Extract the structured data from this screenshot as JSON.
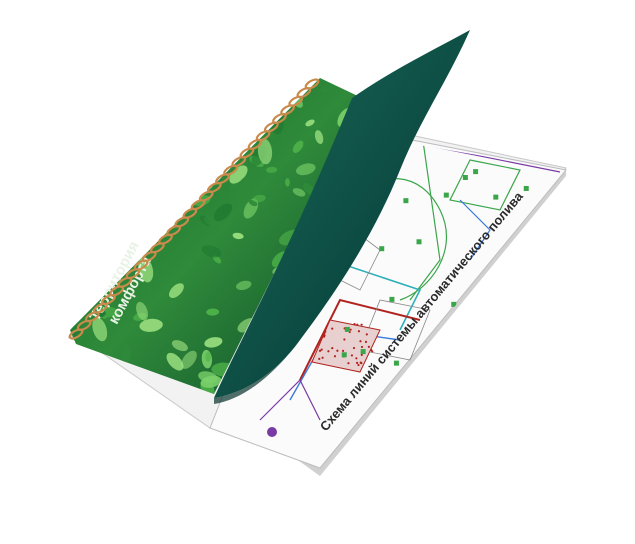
{
  "image": {
    "subject": "Spiral-bound booklet with green leaf cover peeled back over a landscape irrigation plan"
  },
  "plan_sheet": {
    "title": "Схема линий системы автоматического полива"
  },
  "cover": {
    "title_line1": "Территория",
    "title_line2": "комфорта"
  },
  "colors": {
    "background": "#ffffff",
    "leaf_dark": "#0d4a2a",
    "leaf_mid": "#2f8a3a",
    "leaf_light": "#7bd16a",
    "cover_back": "#0c4a42",
    "spiral": "#c98a4b",
    "plan_line_green": "#3aa64a",
    "plan_line_blue": "#3a7ad8",
    "plan_line_red": "#b0231f",
    "plan_line_purple": "#7a3aa6",
    "plan_line_teal": "#2fb0b8"
  },
  "icons": [
    "spiral-binding-icon",
    "leaf-texture"
  ]
}
